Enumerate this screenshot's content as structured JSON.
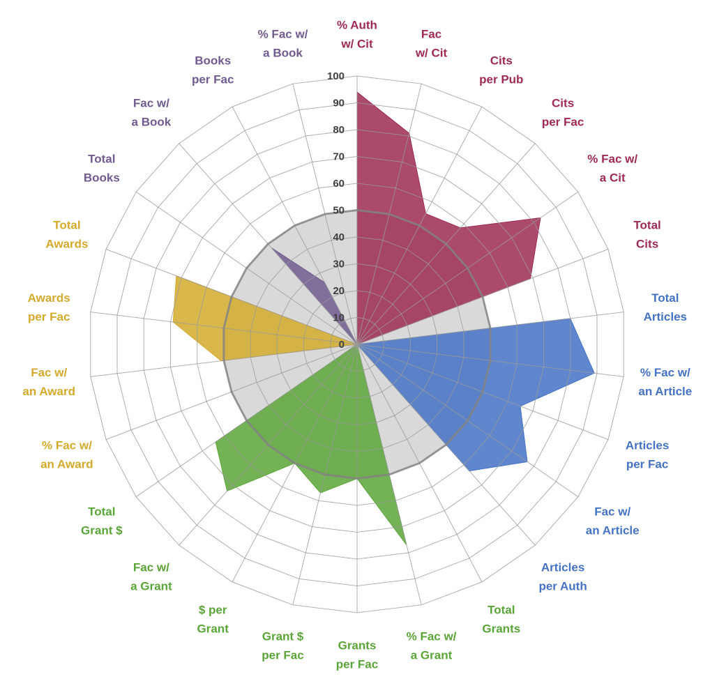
{
  "chart_data": {
    "type": "radar",
    "title": "",
    "rlim": [
      0,
      100
    ],
    "ticks": [
      0,
      10,
      20,
      30,
      40,
      50,
      60,
      70,
      80,
      90,
      100
    ],
    "reference": {
      "value": 50,
      "color": "#d9d9d9",
      "stroke": "#808080"
    },
    "grid": true,
    "categories": [
      {
        "lines": [
          "% Auth",
          "w/ Cit"
        ],
        "color": "#9e2a53"
      },
      {
        "lines": [
          "Fac",
          "w/ Cit"
        ],
        "color": "#9e2a53"
      },
      {
        "lines": [
          "Cits",
          "per Pub"
        ],
        "color": "#9e2a53"
      },
      {
        "lines": [
          "Cits",
          "per Fac"
        ],
        "color": "#9e2a53"
      },
      {
        "lines": [
          "% Fac w/",
          "a Cit"
        ],
        "color": "#9e2a53"
      },
      {
        "lines": [
          "Total",
          "Cits"
        ],
        "color": "#9e2a53"
      },
      {
        "lines": [
          "Total",
          "Articles"
        ],
        "color": "#4472c4"
      },
      {
        "lines": [
          "% Fac w/",
          "an Article"
        ],
        "color": "#4472c4"
      },
      {
        "lines": [
          "Articles",
          "per Fac"
        ],
        "color": "#4472c4"
      },
      {
        "lines": [
          "Fac w/",
          "an Article"
        ],
        "color": "#4472c4"
      },
      {
        "lines": [
          "Articles",
          "per Auth"
        ],
        "color": "#4472c4"
      },
      {
        "lines": [
          "Total",
          "Grants"
        ],
        "color": "#5aa537"
      },
      {
        "lines": [
          "% Fac w/",
          "a Grant"
        ],
        "color": "#5aa537"
      },
      {
        "lines": [
          "Grants",
          "per Fac"
        ],
        "color": "#5aa537"
      },
      {
        "lines": [
          "Grant $",
          "per Fac"
        ],
        "color": "#5aa537"
      },
      {
        "lines": [
          "$ per",
          "Grant"
        ],
        "color": "#5aa537"
      },
      {
        "lines": [
          "Fac w/",
          "a Grant"
        ],
        "color": "#5aa537"
      },
      {
        "lines": [
          "Total",
          "Grant $"
        ],
        "color": "#5aa537"
      },
      {
        "lines": [
          "% Fac w/",
          "an Award"
        ],
        "color": "#d4aa2c"
      },
      {
        "lines": [
          "Fac w/",
          "an Award"
        ],
        "color": "#d4aa2c"
      },
      {
        "lines": [
          "Awards",
          "per Fac"
        ],
        "color": "#d4aa2c"
      },
      {
        "lines": [
          "Total",
          "Awards"
        ],
        "color": "#d4aa2c"
      },
      {
        "lines": [
          "Total",
          "Books"
        ],
        "color": "#705a8f"
      },
      {
        "lines": [
          "Fac w/",
          "a Book"
        ],
        "color": "#705a8f"
      },
      {
        "lines": [
          "Books",
          "per Fac"
        ],
        "color": "#705a8f"
      },
      {
        "lines": [
          "% Fac w/",
          "a Book"
        ],
        "color": "#705a8f"
      }
    ],
    "series": [
      {
        "color": "#9e2a53",
        "values": [
          94,
          81,
          55,
          58,
          83,
          69,
          0,
          0,
          0,
          0,
          0,
          0,
          0,
          0,
          0,
          0,
          0,
          0,
          0,
          0,
          0,
          0,
          0,
          0,
          0,
          0
        ]
      },
      {
        "color": "#4472c4",
        "values": [
          0,
          0,
          0,
          0,
          0,
          0,
          80,
          89,
          65,
          77,
          63,
          0,
          0,
          0,
          0,
          0,
          0,
          0,
          0,
          0,
          0,
          0,
          0,
          0,
          0,
          0
        ]
      },
      {
        "color": "#5aa537",
        "values": [
          0,
          0,
          0,
          0,
          0,
          0,
          0,
          0,
          0,
          0,
          0,
          0,
          77,
          50,
          57,
          50,
          73,
          64,
          0,
          0,
          0,
          0,
          0,
          0,
          0,
          0
        ]
      },
      {
        "color": "#d4aa2c",
        "values": [
          0,
          0,
          0,
          0,
          0,
          0,
          0,
          0,
          0,
          0,
          0,
          0,
          0,
          0,
          0,
          0,
          0,
          0,
          0,
          51,
          69,
          72,
          0,
          0,
          0,
          0
        ]
      },
      {
        "color": "#705a8f",
        "values": [
          0,
          0,
          0,
          0,
          0,
          0,
          0,
          0,
          0,
          0,
          0,
          0,
          0,
          0,
          0,
          0,
          0,
          0,
          0,
          0,
          0,
          0,
          0,
          48,
          26,
          0
        ]
      }
    ]
  }
}
